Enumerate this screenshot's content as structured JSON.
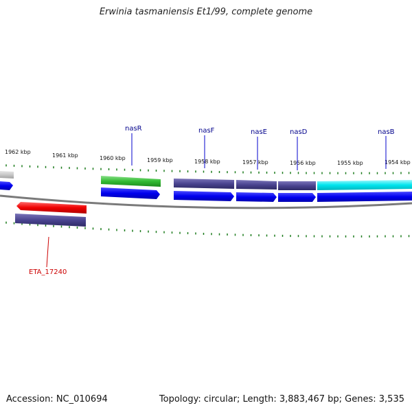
{
  "title": "Erwinia tasmaniensis Et1/99, complete genome",
  "footer": {
    "accession": "Accession: NC_010694",
    "topology": "Topology: circular; Length: 3,883,467 bp; Genes: 3,535"
  },
  "scale_labels": [
    "1962 kbp",
    "1961 kbp",
    "1960 kbp",
    "1959 kbp",
    "1958 kbp",
    "1957 kbp",
    "1956 kbp",
    "1955 kbp",
    "1954 kbp"
  ],
  "gene_labels": {
    "nasR": "nasR",
    "nasF": "nasF",
    "nasE": "nasE",
    "nasD": "nasD",
    "nasB": "nasB",
    "eta": "ETA_17240"
  },
  "colors": {
    "backbone": "#808080",
    "tick": "#1a7a1a",
    "cds": "#0000ee",
    "nasR_feature": "#33bb33",
    "nas_feature": "#4a4490",
    "nasB_feature": "#00e5ee",
    "eta_red": "#ee0000",
    "eta_feature": "#4a4490",
    "grey_feature": "#c8c8c8",
    "label_blue": "#00008b",
    "label_red": "#cc0000"
  }
}
